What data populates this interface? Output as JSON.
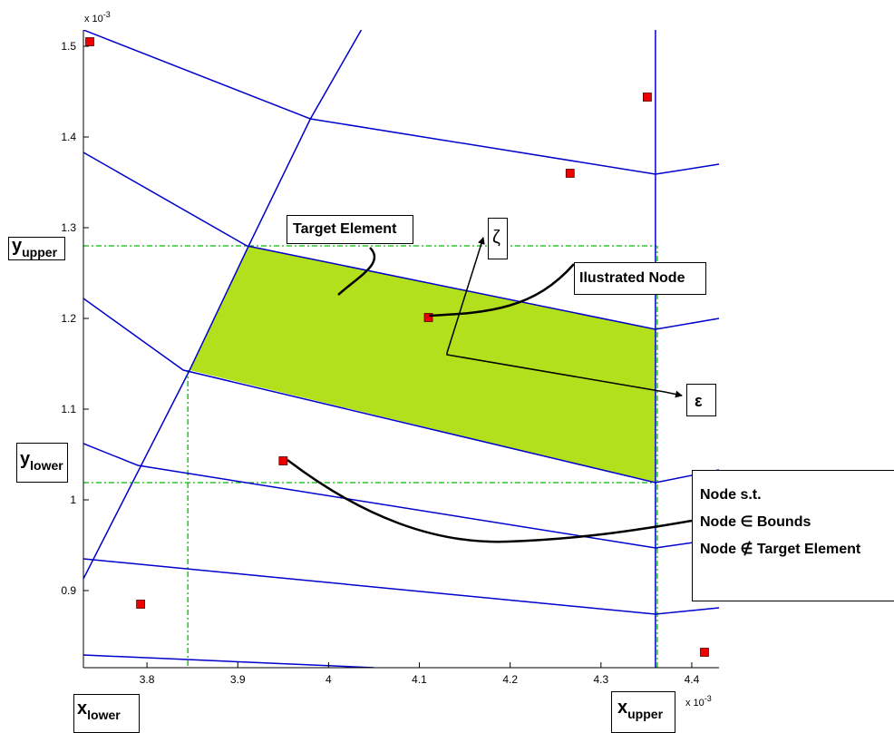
{
  "chart_data": {
    "type": "line",
    "xlim": [
      3.73,
      4.43
    ],
    "ylim": [
      0.815,
      1.518
    ],
    "x_multiplier": "x 10",
    "x_multiplier_exp": "-3",
    "y_multiplier": "x 10",
    "y_multiplier_exp": "-3",
    "x_ticks": [
      "3.8",
      "3.9",
      "4",
      "4.1",
      "4.2",
      "4.3",
      "4.4"
    ],
    "x_tick_values": [
      3.8,
      3.9,
      4.0,
      4.1,
      4.2,
      4.3,
      4.4
    ],
    "y_ticks": [
      "0.9",
      "1",
      "1.1",
      "1.2",
      "1.3",
      "1.4",
      "1.5"
    ],
    "y_tick_values": [
      0.9,
      1.0,
      1.1,
      1.2,
      1.3,
      1.4,
      1.5
    ],
    "mesh_color": "#0000cc",
    "bounds_color": "#00bb00",
    "node_color": "#ee0000",
    "target_fill": "#b3e01c",
    "mesh_lines": [
      [
        [
          3.73,
          1.518
        ],
        [
          3.98,
          1.42
        ],
        [
          4.36,
          1.359
        ],
        [
          4.43,
          1.37
        ]
      ],
      [
        [
          3.73,
          1.383
        ],
        [
          3.91,
          1.28
        ],
        [
          4.36,
          1.188
        ],
        [
          4.43,
          1.2
        ]
      ],
      [
        [
          3.73,
          1.222
        ],
        [
          3.84,
          1.143
        ],
        [
          4.36,
          1.019
        ],
        [
          4.43,
          1.033
        ]
      ],
      [
        [
          3.73,
          1.062
        ],
        [
          3.79,
          1.038
        ],
        [
          4.36,
          0.947
        ],
        [
          4.43,
          0.957
        ]
      ],
      [
        [
          3.73,
          0.935
        ],
        [
          4.36,
          0.874
        ],
        [
          4.43,
          0.881
        ]
      ],
      [
        [
          3.73,
          0.829
        ],
        [
          4.05,
          0.815
        ]
      ],
      [
        [
          3.73,
          0.913
        ],
        [
          3.847,
          1.143
        ],
        [
          3.912,
          1.28
        ],
        [
          3.98,
          1.42
        ],
        [
          4.036,
          1.518
        ]
      ],
      [
        [
          4.36,
          0.815
        ],
        [
          4.36,
          1.518
        ]
      ]
    ],
    "target_element": [
      [
        3.912,
        1.28
      ],
      [
        4.36,
        1.188
      ],
      [
        4.36,
        1.019
      ],
      [
        3.847,
        1.143
      ]
    ],
    "bounds": {
      "x_lower": 3.845,
      "x_upper": 4.361,
      "y_lower": 1.019,
      "y_upper": 1.28
    },
    "nodes": [
      [
        3.737,
        1.505
      ],
      [
        4.351,
        1.444
      ],
      [
        4.266,
        1.36
      ],
      [
        4.11,
        1.201
      ],
      [
        3.95,
        1.043
      ],
      [
        3.793,
        0.885
      ],
      [
        4.414,
        0.832
      ]
    ]
  },
  "annotations": {
    "target_element": "Target Element",
    "illustrated_node": "Ilustrated Node",
    "zeta": "ζ",
    "epsilon": "ε",
    "node_line1": "Node s.t.",
    "node_line2": "Node ∈ Bounds",
    "node_line3": "Node ∉ Target Element",
    "y_upper_main": "y",
    "y_upper_sub": "upper",
    "y_lower_main": "y",
    "y_lower_sub": "lower",
    "x_lower_main": "x",
    "x_lower_sub": "lower",
    "x_upper_main": "x",
    "x_upper_sub": "upper"
  }
}
